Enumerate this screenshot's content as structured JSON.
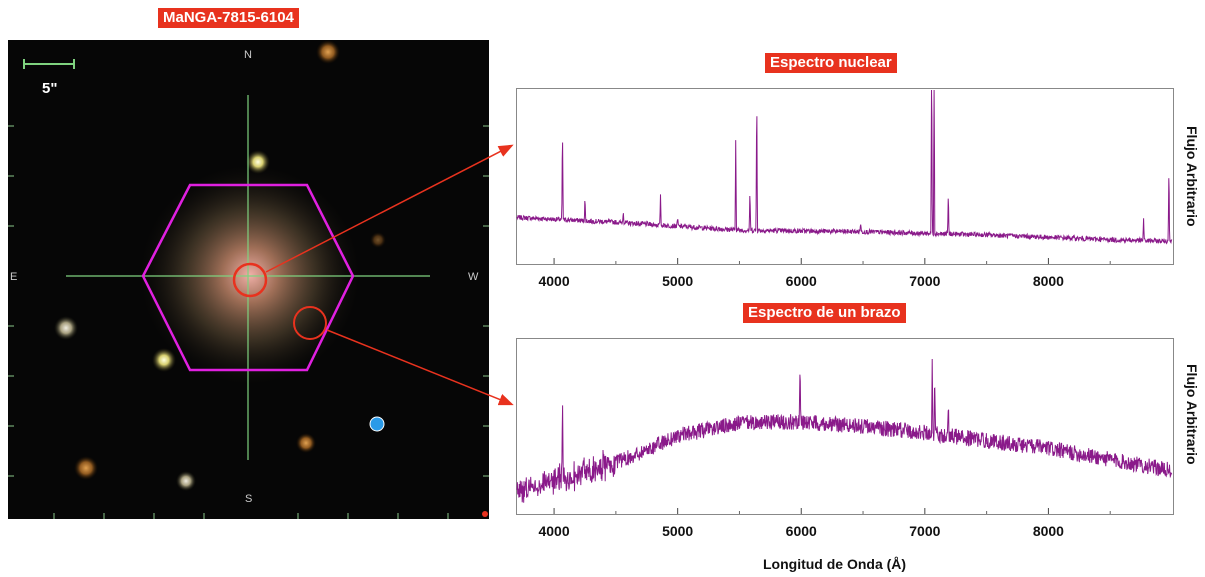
{
  "galaxy": {
    "title": "MaNGA-7815-6104",
    "scale_label": "5\"",
    "compass": {
      "north": "N",
      "south": "S",
      "east": "E",
      "west": "W"
    }
  },
  "colors": {
    "label_bg": "#e8321e",
    "hexagon": "#e020e0",
    "crosshair": "#7fd27f",
    "marker": "#e8321e",
    "spectrum": "#8a1a8a",
    "blue_dot": "#2a9ae8"
  },
  "xlabel": "Longitud de Onda (Å)",
  "chart_data": [
    {
      "type": "line",
      "title": "Espectro nuclear",
      "xlabel": "",
      "ylabel": "Flujo Arbitrario",
      "xlim": [
        3700,
        9000
      ],
      "xticks": [
        4000,
        5000,
        6000,
        7000,
        8000
      ],
      "ylim": [
        0,
        1
      ],
      "continuum": [
        [
          3700,
          0.3
        ],
        [
          4500,
          0.27
        ],
        [
          5500,
          0.22
        ],
        [
          6500,
          0.21
        ],
        [
          7500,
          0.19
        ],
        [
          8500,
          0.16
        ],
        [
          9000,
          0.15
        ]
      ],
      "lines": [
        {
          "x": 4068,
          "h": 0.57
        },
        {
          "x": 4250,
          "h": 0.14
        },
        {
          "x": 4560,
          "h": 0.08
        },
        {
          "x": 4861,
          "h": 0.18
        },
        {
          "x": 5000,
          "h": 0.05
        },
        {
          "x": 5470,
          "h": 0.58
        },
        {
          "x": 5585,
          "h": 0.25
        },
        {
          "x": 5640,
          "h": 0.88
        },
        {
          "x": 6480,
          "h": 0.06
        },
        {
          "x": 7055,
          "h": 1.1
        },
        {
          "x": 7075,
          "h": 1.0
        },
        {
          "x": 7190,
          "h": 0.25
        },
        {
          "x": 8770,
          "h": 0.14
        },
        {
          "x": 8975,
          "h": 0.48
        }
      ],
      "noise": 0.015
    },
    {
      "type": "line",
      "title": "Espectro de un brazo",
      "xlabel": "",
      "ylabel": "Flujo Arbitrario",
      "xlim": [
        3700,
        9000
      ],
      "xticks": [
        4000,
        5000,
        6000,
        7000,
        8000
      ],
      "ylim": [
        0,
        1
      ],
      "continuum": [
        [
          3700,
          0.15
        ],
        [
          4000,
          0.22
        ],
        [
          4300,
          0.28
        ],
        [
          4600,
          0.36
        ],
        [
          5000,
          0.5
        ],
        [
          5500,
          0.58
        ],
        [
          6000,
          0.59
        ],
        [
          6500,
          0.56
        ],
        [
          7000,
          0.52
        ],
        [
          7500,
          0.47
        ],
        [
          8000,
          0.42
        ],
        [
          8500,
          0.35
        ],
        [
          9000,
          0.28
        ]
      ],
      "lines": [
        {
          "x": 4068,
          "h": 0.55
        },
        {
          "x": 5990,
          "h": 0.32
        },
        {
          "x": 7060,
          "h": 0.45
        },
        {
          "x": 7080,
          "h": 0.4
        },
        {
          "x": 7190,
          "h": 0.2
        }
      ],
      "noise": 0.05
    }
  ]
}
